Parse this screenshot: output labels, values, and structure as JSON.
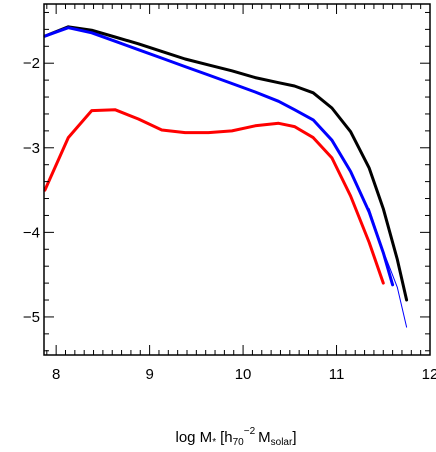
{
  "chart_data": {
    "type": "line",
    "title": "",
    "xlabel_text": "log M",
    "xlabel_subscript": "*",
    "xlabel_unit_prefix": "[h",
    "xlabel_unit_h_subscript": "70",
    "xlabel_unit_h_exponent": "−2",
    "xlabel_unit_mass": "M",
    "xlabel_unit_mass_subscript": "solar",
    "xlabel_unit_suffix": "]",
    "ylabel": "",
    "xlim": [
      7.87,
      12.0
    ],
    "ylim": [
      -5.45,
      -1.3
    ],
    "xscale": "linear",
    "yscale": "linear",
    "x_ticks": [
      8,
      9,
      10,
      11,
      12
    ],
    "x_tick_labels": [
      "8",
      "9",
      "10",
      "11",
      "12"
    ],
    "y_ticks": [
      -5,
      -4,
      -3,
      -2
    ],
    "y_tick_labels": [
      "−5",
      "−4",
      "−3",
      "−2"
    ],
    "grid": false,
    "legend": "none",
    "series": [
      {
        "color": "#000000",
        "style": "thick",
        "x": [
          7.88,
          8.13,
          8.38,
          8.63,
          8.88,
          9.13,
          9.38,
          9.63,
          9.88,
          10.13,
          10.38,
          10.55,
          10.75,
          10.95,
          11.15,
          11.35,
          11.5,
          11.65,
          11.75
        ],
        "y": [
          -1.68,
          -1.57,
          -1.61,
          -1.69,
          -1.77,
          -1.86,
          -1.95,
          -2.02,
          -2.09,
          -2.17,
          -2.23,
          -2.27,
          -2.35,
          -2.53,
          -2.81,
          -3.24,
          -3.72,
          -4.32,
          -4.8
        ]
      },
      {
        "color": "#0000ff",
        "style": "thick",
        "x": [
          7.88,
          8.13,
          8.38,
          8.63,
          8.88,
          9.13,
          9.38,
          9.63,
          9.88,
          10.13,
          10.38,
          10.55,
          10.75,
          10.95,
          11.15,
          11.35,
          11.5,
          11.6
        ],
        "y": [
          -1.68,
          -1.58,
          -1.64,
          -1.74,
          -1.84,
          -1.94,
          -2.04,
          -2.14,
          -2.24,
          -2.34,
          -2.45,
          -2.55,
          -2.67,
          -2.91,
          -3.28,
          -3.76,
          -4.24,
          -4.62
        ]
      },
      {
        "color": "#0000ff",
        "style": "thin",
        "x": [
          11.35,
          11.5,
          11.65,
          11.75
        ],
        "y": [
          -3.72,
          -4.22,
          -4.65,
          -5.12
        ]
      },
      {
        "color": "#ff0000",
        "style": "thick",
        "x": [
          7.88,
          8.13,
          8.38,
          8.63,
          8.88,
          9.13,
          9.38,
          9.63,
          9.88,
          10.13,
          10.38,
          10.55,
          10.75,
          10.95,
          11.15,
          11.35,
          11.5
        ],
        "y": [
          -3.5,
          -2.88,
          -2.56,
          -2.55,
          -2.66,
          -2.79,
          -2.82,
          -2.82,
          -2.8,
          -2.74,
          -2.71,
          -2.75,
          -2.88,
          -3.12,
          -3.57,
          -4.12,
          -4.6
        ]
      }
    ]
  }
}
